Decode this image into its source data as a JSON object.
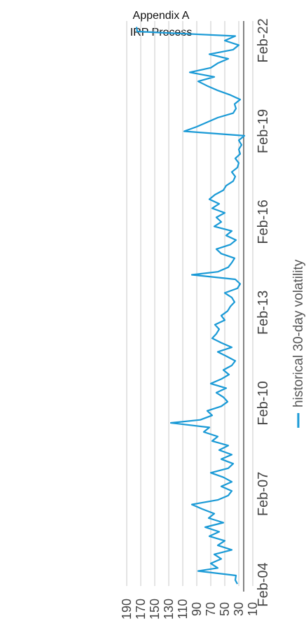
{
  "header": {
    "line1": "Appendix A",
    "line2": "IRP Process"
  },
  "chart_data": {
    "type": "line",
    "orientation": "rotated-90-clockwise",
    "title": "",
    "xlabel": "",
    "ylabel": "",
    "ylim": [
      10,
      190
    ],
    "y_ticks": [
      10,
      30,
      50,
      70,
      90,
      110,
      130,
      150,
      170,
      190
    ],
    "x_tick_labels": [
      "Feb-04",
      "Feb-07",
      "Feb-10",
      "Feb-13",
      "Feb-16",
      "Feb-19",
      "Feb-22"
    ],
    "grid": true,
    "legend": "bottom",
    "series": [
      {
        "name": "historical 30-day volatility",
        "color": "#1a9ad6",
        "points": [
          [
            2004.12,
            32
          ],
          [
            2004.25,
            35
          ],
          [
            2004.4,
            34
          ],
          [
            2004.55,
            88
          ],
          [
            2004.65,
            60
          ],
          [
            2004.8,
            70
          ],
          [
            2004.95,
            55
          ],
          [
            2005.1,
            65
          ],
          [
            2005.25,
            40
          ],
          [
            2005.4,
            60
          ],
          [
            2005.55,
            50
          ],
          [
            2005.7,
            72
          ],
          [
            2005.85,
            58
          ],
          [
            2006.0,
            78
          ],
          [
            2006.15,
            52
          ],
          [
            2006.3,
            73
          ],
          [
            2006.45,
            65
          ],
          [
            2006.6,
            82
          ],
          [
            2006.75,
            97
          ],
          [
            2006.9,
            60
          ],
          [
            2007.05,
            45
          ],
          [
            2007.2,
            40
          ],
          [
            2007.35,
            55
          ],
          [
            2007.5,
            40
          ],
          [
            2007.65,
            52
          ],
          [
            2007.8,
            70
          ],
          [
            2007.95,
            45
          ],
          [
            2008.1,
            38
          ],
          [
            2008.25,
            55
          ],
          [
            2008.4,
            40
          ],
          [
            2008.55,
            58
          ],
          [
            2008.7,
            45
          ],
          [
            2008.85,
            68
          ],
          [
            2009.0,
            60
          ],
          [
            2009.15,
            80
          ],
          [
            2009.3,
            72
          ],
          [
            2009.45,
            127
          ],
          [
            2009.55,
            85
          ],
          [
            2009.7,
            68
          ],
          [
            2009.85,
            75
          ],
          [
            2010.0,
            55
          ],
          [
            2010.15,
            46
          ],
          [
            2010.3,
            52
          ],
          [
            2010.45,
            62
          ],
          [
            2010.6,
            48
          ],
          [
            2010.75,
            70
          ],
          [
            2010.9,
            55
          ],
          [
            2011.05,
            44
          ],
          [
            2011.2,
            52
          ],
          [
            2011.35,
            40
          ],
          [
            2011.5,
            35
          ],
          [
            2011.65,
            47
          ],
          [
            2011.8,
            60
          ],
          [
            2011.95,
            40
          ],
          [
            2012.1,
            55
          ],
          [
            2012.25,
            68
          ],
          [
            2012.4,
            62
          ],
          [
            2012.55,
            58
          ],
          [
            2012.7,
            64
          ],
          [
            2012.85,
            50
          ],
          [
            2013.0,
            55
          ],
          [
            2013.15,
            46
          ],
          [
            2013.3,
            42
          ],
          [
            2013.45,
            36
          ],
          [
            2013.6,
            40
          ],
          [
            2013.75,
            50
          ],
          [
            2013.9,
            32
          ],
          [
            2014.05,
            28
          ],
          [
            2014.2,
            35
          ],
          [
            2014.35,
            97
          ],
          [
            2014.45,
            60
          ],
          [
            2014.6,
            45
          ],
          [
            2014.75,
            40
          ],
          [
            2014.9,
            36
          ],
          [
            2015.05,
            55
          ],
          [
            2015.2,
            62
          ],
          [
            2015.35,
            42
          ],
          [
            2015.5,
            34
          ],
          [
            2015.65,
            48
          ],
          [
            2015.8,
            40
          ],
          [
            2015.95,
            65
          ],
          [
            2016.1,
            55
          ],
          [
            2016.25,
            62
          ],
          [
            2016.4,
            50
          ],
          [
            2016.55,
            68
          ],
          [
            2016.7,
            58
          ],
          [
            2016.85,
            72
          ],
          [
            2017.0,
            64
          ],
          [
            2017.15,
            52
          ],
          [
            2017.3,
            48
          ],
          [
            2017.45,
            38
          ],
          [
            2017.6,
            35
          ],
          [
            2017.75,
            40
          ],
          [
            2017.9,
            32
          ],
          [
            2018.05,
            30
          ],
          [
            2018.2,
            35
          ],
          [
            2018.35,
            28
          ],
          [
            2018.5,
            30
          ],
          [
            2018.65,
            26
          ],
          [
            2018.8,
            30
          ],
          [
            2018.95,
            22
          ],
          [
            2019.1,
            108
          ],
          [
            2019.25,
            90
          ],
          [
            2019.4,
            75
          ],
          [
            2019.55,
            60
          ],
          [
            2019.7,
            38
          ],
          [
            2019.85,
            34
          ],
          [
            2020.0,
            36
          ],
          [
            2020.15,
            28
          ],
          [
            2020.3,
            42
          ],
          [
            2020.45,
            60
          ],
          [
            2020.6,
            75
          ],
          [
            2020.75,
            88
          ],
          [
            2020.9,
            65
          ],
          [
            2021.05,
            100
          ],
          [
            2021.2,
            70
          ],
          [
            2021.35,
            60
          ],
          [
            2021.5,
            45
          ],
          [
            2021.65,
            72
          ],
          [
            2021.8,
            38
          ],
          [
            2021.95,
            30
          ],
          [
            2022.1,
            50
          ],
          [
            2022.25,
            35
          ],
          [
            2022.4,
            175
          ],
          [
            2022.55,
            176
          ]
        ]
      }
    ]
  }
}
